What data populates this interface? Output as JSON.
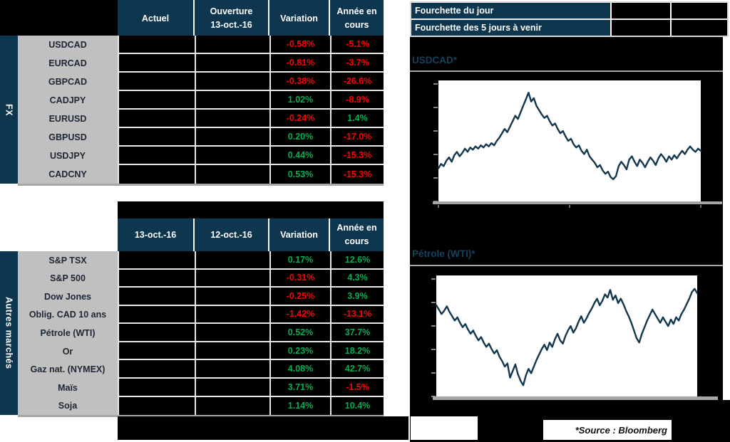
{
  "palette": {
    "navy": "#0e374f",
    "title_navy": "#16425e",
    "label_bg": "#c0c0c0",
    "positive": "#00b050",
    "negative": "#ff0000",
    "line": "#13374e"
  },
  "fx_table": {
    "section_label": "FX",
    "columns": [
      {
        "line1": "Actuel",
        "line2": ""
      },
      {
        "line1": "Ouverture",
        "line2": "13-oct.-16"
      },
      {
        "line1": "Variation",
        "line2": ""
      },
      {
        "line1": "Année en",
        "line2": "cours"
      }
    ],
    "rows": [
      {
        "label": "USDCAD",
        "col1": "",
        "col2": "",
        "variation": "-0.58%",
        "ytd": "-5.1%"
      },
      {
        "label": "EURCAD",
        "col1": "",
        "col2": "",
        "variation": "-0.81%",
        "ytd": "-3.7%"
      },
      {
        "label": "GBPCAD",
        "col1": "",
        "col2": "",
        "variation": "-0.38%",
        "ytd": "-26.6%"
      },
      {
        "label": "CADJPY",
        "col1": "",
        "col2": "",
        "variation": "1.02%",
        "ytd": "-8.9%"
      },
      {
        "label": "EURUSD",
        "col1": "",
        "col2": "",
        "variation": "-0.24%",
        "ytd": "1.4%"
      },
      {
        "label": "GBPUSD",
        "col1": "",
        "col2": "",
        "variation": "0.20%",
        "ytd": "-17.0%"
      },
      {
        "label": "USDJPY",
        "col1": "",
        "col2": "",
        "variation": "0.44%",
        "ytd": "-15.3%"
      },
      {
        "label": "CADCNY",
        "col1": "",
        "col2": "",
        "variation": "0.53%",
        "ytd": "-15.3%"
      }
    ]
  },
  "markets_table": {
    "section_label": "Autres marchés",
    "columns": [
      {
        "line1": "13-oct.-16",
        "line2": ""
      },
      {
        "line1": "12-oct.-16",
        "line2": ""
      },
      {
        "line1": "Variation",
        "line2": ""
      },
      {
        "line1": "Année en",
        "line2": "cours"
      }
    ],
    "rows": [
      {
        "label": "S&P TSX",
        "col1": "",
        "col2": "",
        "variation": "0.17%",
        "ytd": "12.6%"
      },
      {
        "label": "S&P 500",
        "col1": "",
        "col2": "",
        "variation": "-0.31%",
        "ytd": "4.3%"
      },
      {
        "label": "Dow Jones",
        "col1": "",
        "col2": "",
        "variation": "-0.25%",
        "ytd": "3.9%"
      },
      {
        "label": "Oblig. CAD 10 ans",
        "col1": "",
        "col2": "",
        "variation": "-1.42%",
        "ytd": "-13.1%"
      },
      {
        "label": "Pétrole (WTI)",
        "col1": "",
        "col2": "",
        "variation": "0.52%",
        "ytd": "37.7%"
      },
      {
        "label": "Or",
        "col1": "",
        "col2": "",
        "variation": "0.23%",
        "ytd": "18.2%"
      },
      {
        "label": "Gaz nat. (NYMEX)",
        "col1": "",
        "col2": "",
        "variation": "4.08%",
        "ytd": "42.7%"
      },
      {
        "label": "Maïs",
        "col1": "",
        "col2": "",
        "variation": "3.71%",
        "ytd": "-1.5%"
      },
      {
        "label": "Soja",
        "col1": "",
        "col2": "",
        "variation": "1.14%",
        "ytd": "10.4%"
      }
    ]
  },
  "fourchette": {
    "rows": [
      {
        "label": "Fourchette du jour",
        "low": "",
        "high": ""
      },
      {
        "label": "Fourchette des 5 jours à venir",
        "low": "",
        "high": ""
      }
    ]
  },
  "chart_data": [
    {
      "type": "line",
      "title": "USDCAD*",
      "series_name": "USDCAD",
      "xlabel": "",
      "ylabel": "",
      "axis_tick_labels_visible": false,
      "y_scale": "normalized_0_100_of_plot_height",
      "values": [
        25,
        29,
        27,
        32,
        35,
        31,
        37,
        40,
        36,
        39,
        43,
        40,
        44,
        42,
        45,
        43,
        46,
        44,
        47,
        45,
        48,
        46,
        50,
        53,
        57,
        61,
        58,
        63,
        68,
        73,
        70,
        76,
        82,
        88,
        94,
        86,
        89,
        82,
        78,
        74,
        71,
        73,
        68,
        64,
        66,
        61,
        57,
        59,
        54,
        50,
        52,
        47,
        44,
        46,
        41,
        38,
        42,
        36,
        33,
        30,
        26,
        28,
        23,
        20,
        22,
        17,
        15,
        18,
        27,
        31,
        28,
        24,
        33,
        36,
        31,
        27,
        33,
        30,
        26,
        31,
        35,
        32,
        28,
        34,
        38,
        35,
        31,
        36,
        33,
        37,
        34,
        38,
        41,
        38,
        42,
        45,
        42,
        40,
        43,
        41
      ]
    },
    {
      "type": "line",
      "title": "Pétrole (WTI)*",
      "series_name": "WTI",
      "xlabel": "",
      "ylabel": "",
      "axis_tick_labels_visible": false,
      "y_scale": "normalized_0_100_of_plot_height",
      "values": [
        78,
        74,
        70,
        73,
        77,
        72,
        68,
        64,
        67,
        62,
        58,
        61,
        56,
        52,
        55,
        50,
        46,
        49,
        44,
        40,
        43,
        38,
        34,
        37,
        31,
        27,
        22,
        25,
        12,
        18,
        24,
        15,
        9,
        5,
        14,
        20,
        16,
        22,
        28,
        33,
        38,
        42,
        37,
        44,
        40,
        47,
        52,
        46,
        43,
        50,
        55,
        59,
        53,
        57,
        63,
        68,
        62,
        66,
        71,
        75,
        80,
        84,
        78,
        82,
        88,
        85,
        92,
        83,
        87,
        80,
        84,
        79,
        73,
        68,
        62,
        55,
        48,
        44,
        52,
        58,
        64,
        69,
        74,
        70,
        66,
        62,
        67,
        63,
        59,
        65,
        61,
        67,
        64,
        70,
        74,
        79,
        84,
        90,
        93,
        89
      ]
    }
  ],
  "footer": {
    "source": "*Source : Bloomberg"
  }
}
